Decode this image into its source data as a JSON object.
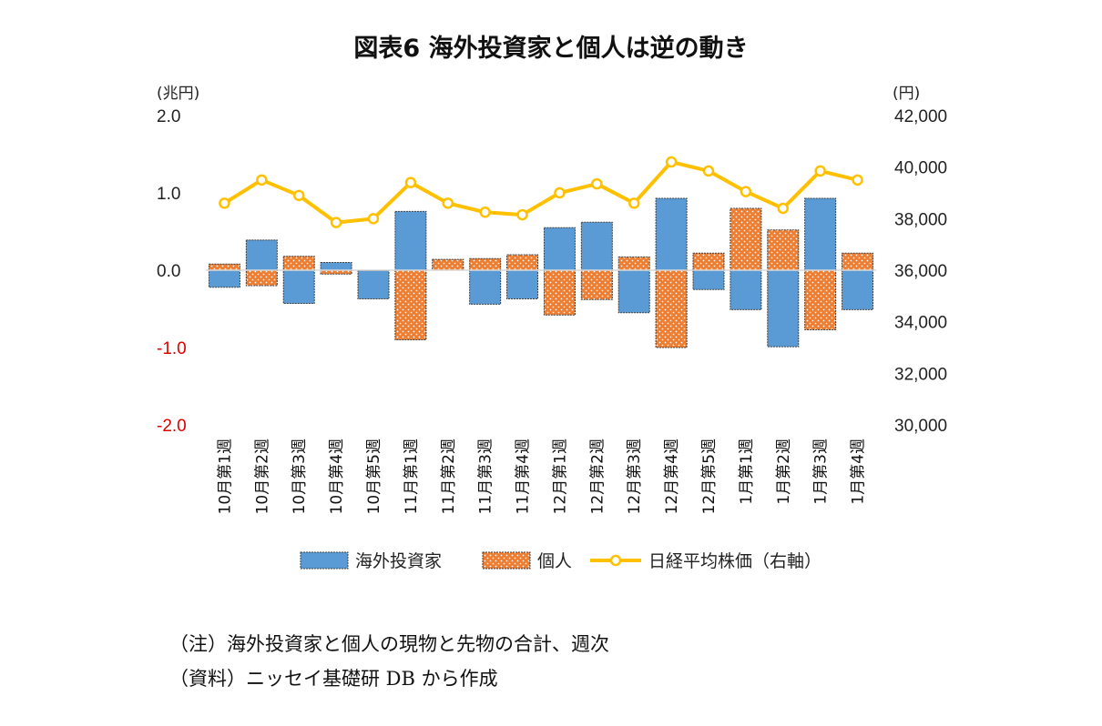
{
  "chart_data": {
    "type": "bar",
    "title": "図表6 海外投資家と個人は逆の動き",
    "y_left": {
      "unit": "(兆円)",
      "range": [
        -2.0,
        2.0
      ],
      "ticks": [
        "2.0",
        "1.0",
        "0.0",
        "-1.0",
        "-2.0"
      ]
    },
    "y_right": {
      "unit": "(円)",
      "range": [
        30000,
        42000
      ],
      "ticks": [
        "42,000",
        "40,000",
        "38,000",
        "36,000",
        "34,000",
        "32,000",
        "30,000"
      ]
    },
    "categories": [
      "10月第1週",
      "10月第2週",
      "10月第3週",
      "10月第4週",
      "10月第5週",
      "11月第1週",
      "11月第2週",
      "11月第3週",
      "11月第4週",
      "12月第1週",
      "12月第2週",
      "12月第3週",
      "12月第4週",
      "12月第5週",
      "1月第1週",
      "1月第2週",
      "1月第3週",
      "1月第4週"
    ],
    "series": [
      {
        "name": "海外投資家",
        "kind": "bar",
        "axis": "left",
        "color": "#5b9bd5",
        "values": [
          -0.22,
          0.39,
          -0.43,
          0.1,
          -0.37,
          0.76,
          0.03,
          -0.44,
          -0.37,
          0.55,
          0.62,
          -0.55,
          0.93,
          -0.25,
          -0.51,
          -0.99,
          0.93,
          -0.51
        ]
      },
      {
        "name": "個人",
        "kind": "bar",
        "axis": "left",
        "color": "#ed7d31",
        "values": [
          0.08,
          -0.2,
          0.18,
          -0.05,
          0.0,
          -0.9,
          0.14,
          0.15,
          0.2,
          -0.58,
          -0.38,
          0.17,
          -1.0,
          0.22,
          0.8,
          0.52,
          -0.77,
          0.22
        ]
      },
      {
        "name": "日経平均株価（右軸）",
        "kind": "line",
        "axis": "right",
        "color": "#ffc000",
        "values": [
          38600,
          39500,
          38900,
          37850,
          38000,
          39400,
          38600,
          38250,
          38150,
          39000,
          39350,
          38600,
          40200,
          39850,
          39050,
          38400,
          39850,
          39500
        ]
      }
    ],
    "legend": "bottom",
    "grid": false
  },
  "notes": [
    "（注）海外投資家と個人の現物と先物の合計、週次",
    "（資料）ニッセイ基礎研 DB から作成"
  ]
}
